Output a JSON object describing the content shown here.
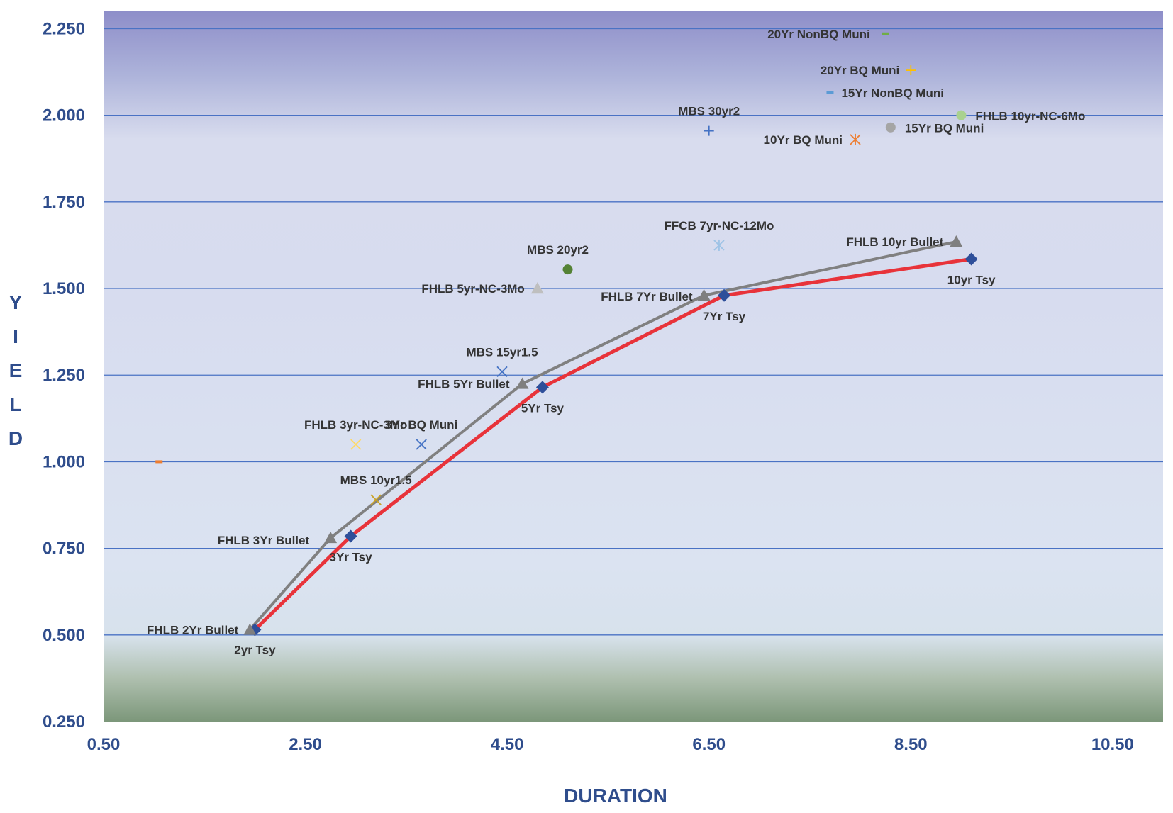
{
  "chart_data": {
    "type": "scatter",
    "title": "",
    "xlabel": "DURATION",
    "ylabel": "YIELD",
    "xlim": [
      0.5,
      11.0
    ],
    "ylim": [
      0.25,
      2.3
    ],
    "xticks": [
      "0.50",
      "2.50",
      "4.50",
      "6.50",
      "8.50",
      "10.50"
    ],
    "yticks": [
      "0.250",
      "0.500",
      "0.750",
      "1.000",
      "1.250",
      "1.500",
      "1.750",
      "2.000",
      "2.250"
    ],
    "ytick_values": [
      0.25,
      0.5,
      0.75,
      1.0,
      1.25,
      1.5,
      1.75,
      2.0,
      2.25
    ],
    "xtick_values": [
      0.5,
      2.5,
      4.5,
      6.5,
      8.5,
      10.5
    ],
    "grid": "horizontal",
    "line_series": [
      {
        "color": "#e8333a",
        "marker": "diamond",
        "marker_color": "#2e4f9a",
        "points": [
          {
            "label": "2yr Tsy",
            "x": 2.0,
            "y": 0.515
          },
          {
            "label": "3Yr Tsy",
            "x": 2.95,
            "y": 0.785
          },
          {
            "label": "5Yr Tsy",
            "x": 4.85,
            "y": 1.215
          },
          {
            "label": "7Yr Tsy",
            "x": 6.65,
            "y": 1.48
          },
          {
            "label": "10yr Tsy",
            "x": 9.1,
            "y": 1.585
          }
        ]
      },
      {
        "color": "#808080",
        "marker": "triangle",
        "marker_color": "#7f7f7f",
        "points": [
          {
            "label": "FHLB 2Yr Bullet",
            "x": 1.95,
            "y": 0.515
          },
          {
            "label": "FHLB 3Yr Bullet",
            "x": 2.75,
            "y": 0.78
          },
          {
            "label": "FHLB 5Yr Bullet",
            "x": 4.65,
            "y": 1.225
          },
          {
            "label": "FHLB 7Yr Bullet",
            "x": 6.45,
            "y": 1.48
          },
          {
            "label": "FHLB 10yr Bullet",
            "x": 8.95,
            "y": 1.635
          }
        ]
      }
    ],
    "scatter_points": [
      {
        "label": "20Yr NonBQ Muni",
        "x": 8.25,
        "y": 2.235,
        "marker": "dash",
        "color": "#70ad47"
      },
      {
        "label": "20Yr BQ Muni",
        "x": 8.5,
        "y": 2.13,
        "marker": "plus",
        "color": "#ffc000"
      },
      {
        "label": "15Yr NonBQ Muni",
        "x": 7.7,
        "y": 2.065,
        "marker": "dash",
        "color": "#5b9bd5"
      },
      {
        "label": "FHLB 10yr-NC-6Mo",
        "x": 9.0,
        "y": 2.0,
        "marker": "circle",
        "color": "#a9d18e"
      },
      {
        "label": "15Yr BQ Muni",
        "x": 8.3,
        "y": 1.965,
        "marker": "circle",
        "color": "#a5a5a5"
      },
      {
        "label": "MBS 30yr2",
        "x": 6.5,
        "y": 1.955,
        "marker": "plus",
        "color": "#4472c4"
      },
      {
        "label": "10Yr BQ Muni",
        "x": 7.95,
        "y": 1.93,
        "marker": "asterisk",
        "color": "#ed7d31"
      },
      {
        "label": "FFCB 7yr-NC-12Mo",
        "x": 6.6,
        "y": 1.625,
        "marker": "asterisk",
        "color": "#9dc3e6"
      },
      {
        "label": "MBS 20yr2",
        "x": 5.1,
        "y": 1.555,
        "marker": "circle",
        "color": "#548235"
      },
      {
        "label": "FHLB 5yr-NC-3Mo",
        "x": 4.8,
        "y": 1.5,
        "marker": "triangle",
        "color": "#bfbfbf"
      },
      {
        "label": "MBS 15yr1.5",
        "x": 4.45,
        "y": 1.26,
        "marker": "x",
        "color": "#4472c4"
      },
      {
        "label": "FHLB 3yr-NC-3Mo",
        "x": 3.0,
        "y": 1.05,
        "marker": "x",
        "color": "#ffd966"
      },
      {
        "label": "3Yr BQ Muni",
        "x": 3.65,
        "y": 1.05,
        "marker": "x",
        "color": "#4472c4"
      },
      {
        "label": "MBS 10yr1.5",
        "x": 3.2,
        "y": 0.89,
        "marker": "x",
        "color": "#c9a227"
      },
      {
        "label": "",
        "x": 1.05,
        "y": 1.0,
        "marker": "dash",
        "color": "#ed7d31"
      }
    ]
  }
}
